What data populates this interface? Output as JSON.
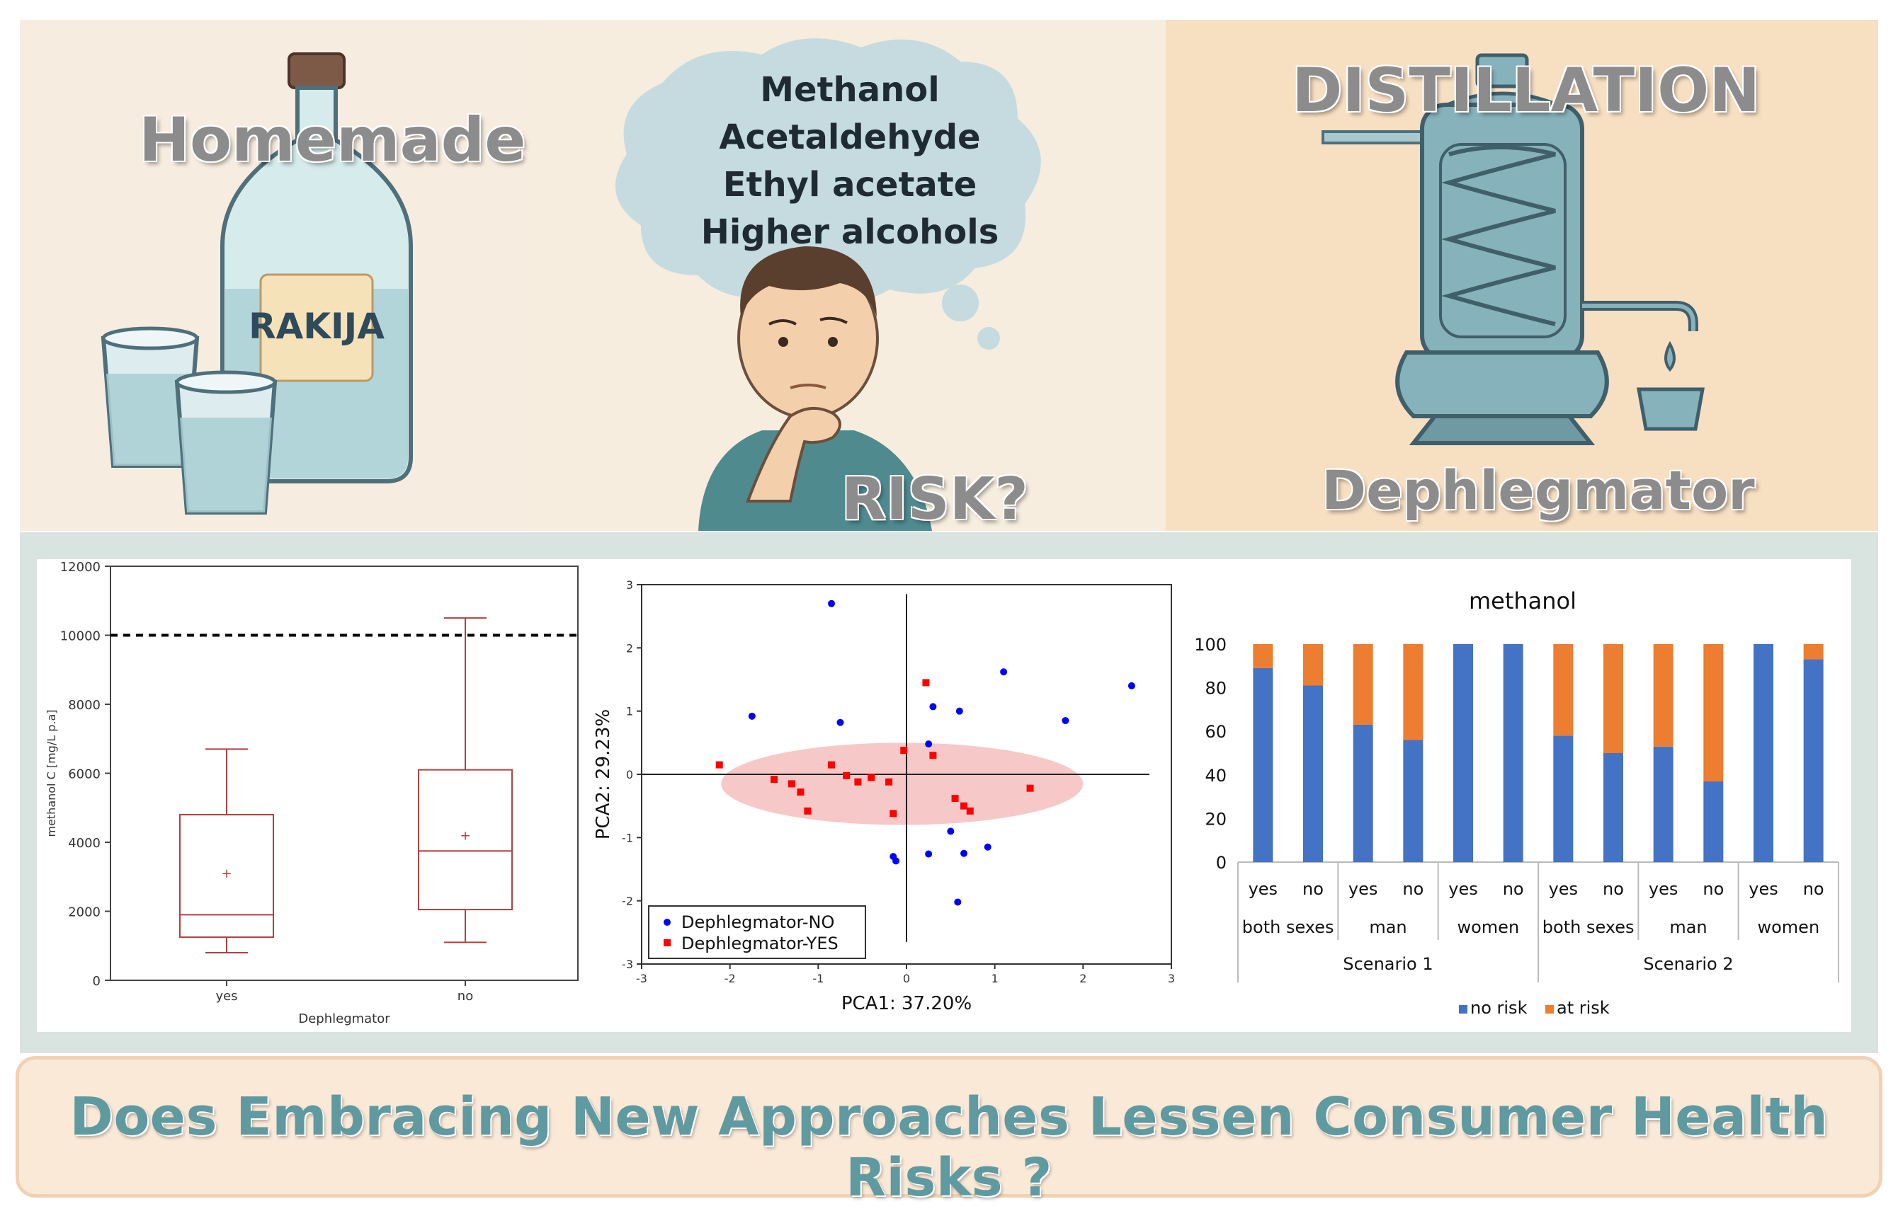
{
  "top": {
    "homemade_label": "Homemade",
    "bottle_label": "RAKIJA",
    "thought_compounds": [
      "Methanol",
      "Acetaldehyde",
      "Ethyl acetate",
      "Higher alcohols"
    ],
    "risk_label": "RISK?",
    "distillation_label": "DISTILLATION",
    "dephlegmator_label": "Dephlegmator"
  },
  "colors": {
    "box": "#b04040",
    "no_series": "#0000ff",
    "yes_series": "#ff0000",
    "no_risk": "#4472c4",
    "at_risk": "#ed7d31",
    "banner_text": "#5e9aa0"
  },
  "chart_data": [
    {
      "type": "box",
      "xlabel": "Dephlegmator",
      "ylabel": "methanol C [mg/L p.a]",
      "ylim": [
        0,
        12000
      ],
      "yticks": [
        "0",
        "2000",
        "4000",
        "6000",
        "8000",
        "10000",
        "12000"
      ],
      "limit_line": 10000,
      "categories": [
        "yes",
        "no"
      ],
      "boxes": [
        {
          "min": 800,
          "q1": 1250,
          "median": 1900,
          "q3": 4800,
          "max": 6700,
          "mean": 3100
        },
        {
          "min": 1100,
          "q1": 2050,
          "median": 3750,
          "q3": 6100,
          "max": 10500,
          "mean": 4200
        }
      ]
    },
    {
      "type": "scatter",
      "xlabel": "PCA1: 37.20%",
      "ylabel": "PCA2: 29.23%",
      "xlim": [
        -3,
        3
      ],
      "ylim": [
        -3,
        3
      ],
      "xticks": [
        "-3",
        "-2",
        "-1",
        "0",
        "1",
        "2",
        "3"
      ],
      "yticks": [
        "-3",
        "-2",
        "-1",
        "0",
        "1",
        "2",
        "3"
      ],
      "legend": "bottom-left",
      "series": [
        {
          "name": "Dephlegmator-NO",
          "points": [
            [
              -0.85,
              2.7
            ],
            [
              -1.75,
              0.92
            ],
            [
              -0.75,
              0.82
            ],
            [
              0.3,
              1.07
            ],
            [
              0.6,
              1.0
            ],
            [
              1.1,
              1.62
            ],
            [
              1.8,
              0.85
            ],
            [
              2.55,
              1.4
            ],
            [
              0.25,
              0.48
            ],
            [
              -0.15,
              -1.3
            ],
            [
              -0.12,
              -1.37
            ],
            [
              0.25,
              -1.26
            ],
            [
              0.5,
              -0.9
            ],
            [
              0.65,
              -1.25
            ],
            [
              0.92,
              -1.15
            ],
            [
              0.58,
              -2.02
            ]
          ]
        },
        {
          "name": "Dephlegmator-YES",
          "points": [
            [
              0.22,
              1.45
            ],
            [
              -2.12,
              0.15
            ],
            [
              -1.5,
              -0.08
            ],
            [
              -1.3,
              -0.15
            ],
            [
              -1.2,
              -0.28
            ],
            [
              -1.12,
              -0.58
            ],
            [
              -0.85,
              0.15
            ],
            [
              -0.68,
              -0.02
            ],
            [
              -0.55,
              -0.12
            ],
            [
              -0.4,
              -0.05
            ],
            [
              -0.2,
              -0.12
            ],
            [
              -0.15,
              -0.62
            ],
            [
              -0.03,
              0.38
            ],
            [
              0.3,
              0.3
            ],
            [
              0.55,
              -0.38
            ],
            [
              0.65,
              -0.5
            ],
            [
              0.72,
              -0.58
            ],
            [
              1.4,
              -0.22
            ]
          ]
        }
      ]
    },
    {
      "type": "bar",
      "stacked": true,
      "title": "methanol",
      "ylim": [
        0,
        100
      ],
      "yticks": [
        "0",
        "20",
        "40",
        "60",
        "80",
        "100"
      ],
      "categories": [
        "yes",
        "no",
        "yes",
        "no",
        "yes",
        "no",
        "yes",
        "no",
        "yes",
        "no",
        "yes",
        "no"
      ],
      "groups": [
        "both sexes",
        "man",
        "women",
        "both sexes",
        "man",
        "women"
      ],
      "scenarios": [
        "Scenario 1",
        "Scenario 2"
      ],
      "legend": "bottom",
      "series": [
        {
          "name": "no risk",
          "values": [
            89,
            81,
            63,
            56,
            100,
            100,
            58,
            50,
            53,
            37,
            100,
            93
          ]
        },
        {
          "name": "at risk",
          "values": [
            11,
            19,
            37,
            44,
            0,
            0,
            42,
            50,
            47,
            63,
            0,
            7
          ]
        }
      ]
    }
  ],
  "banner": {
    "text": "Does Embracing New Approaches Lessen Consumer Health Risks ?"
  }
}
